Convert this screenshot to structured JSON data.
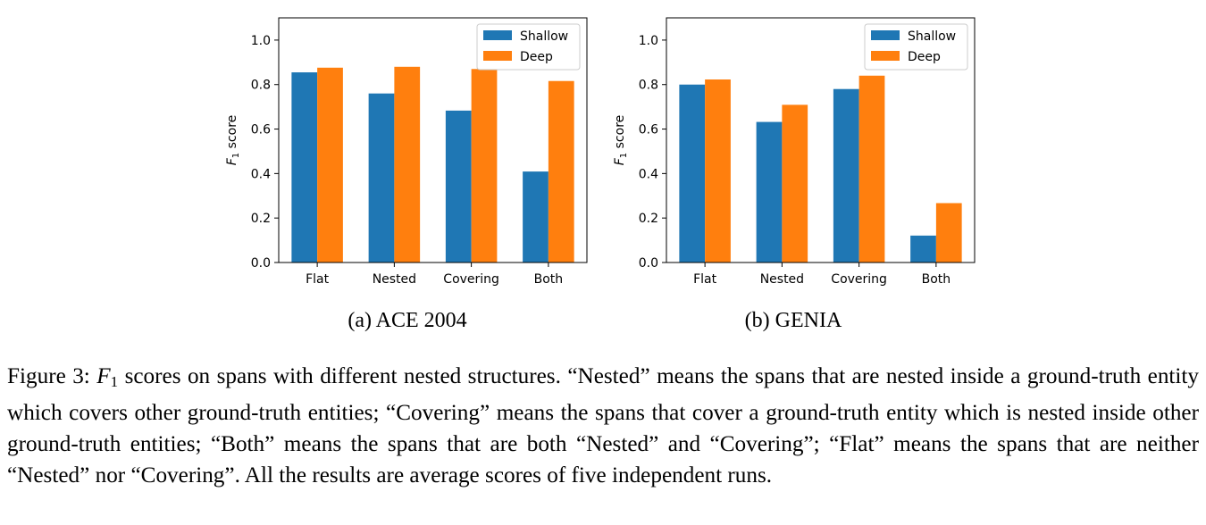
{
  "chart_data": [
    {
      "type": "bar",
      "panel": "a",
      "categories": [
        "Flat",
        "Nested",
        "Covering",
        "Both"
      ],
      "series": [
        {
          "name": "Shallow",
          "values": [
            0.855,
            0.76,
            0.683,
            0.409
          ]
        },
        {
          "name": "Deep",
          "values": [
            0.876,
            0.88,
            0.87,
            0.816
          ]
        }
      ],
      "ylabel_main": "F",
      "ylabel_sub": "1",
      "ylabel_rest": " score",
      "ylim": [
        0,
        1.1
      ],
      "yticks": [
        "0.0",
        "0.2",
        "0.4",
        "0.6",
        "0.8",
        "1.0"
      ],
      "ytick_values": [
        0,
        0.2,
        0.4,
        0.6,
        0.8,
        1.0
      ],
      "legend_position": "top-right",
      "grid": false,
      "subcaption": "(a) ACE 2004"
    },
    {
      "type": "bar",
      "panel": "b",
      "categories": [
        "Flat",
        "Nested",
        "Covering",
        "Both"
      ],
      "series": [
        {
          "name": "Shallow",
          "values": [
            0.8,
            0.632,
            0.78,
            0.121
          ]
        },
        {
          "name": "Deep",
          "values": [
            0.823,
            0.709,
            0.84,
            0.267
          ]
        }
      ],
      "ylabel_main": "F",
      "ylabel_sub": "1",
      "ylabel_rest": " score",
      "ylim": [
        0,
        1.1
      ],
      "yticks": [
        "0.0",
        "0.2",
        "0.4",
        "0.6",
        "0.8",
        "1.0"
      ],
      "ytick_values": [
        0,
        0.2,
        0.4,
        0.6,
        0.8,
        1.0
      ],
      "legend_position": "top-right",
      "grid": false,
      "subcaption": "(b) GENIA"
    }
  ],
  "colors": {
    "shallow": "#1f77b4",
    "deep": "#ff7f0e"
  },
  "caption": {
    "prefix": "Figure 3: ",
    "var": "F",
    "sub": "1",
    "text": " scores on spans with different nested structures. “Nested” means the spans that are nested inside a ground-truth entity which covers other ground-truth entities; “Covering” means the spans that cover a ground-truth entity which is nested inside other ground-truth entities; “Both” means the spans that are both “Nested” and “Covering”; “Flat” means the spans that are neither “Nested” nor “Covering”. All the results are average scores of five independent runs."
  }
}
